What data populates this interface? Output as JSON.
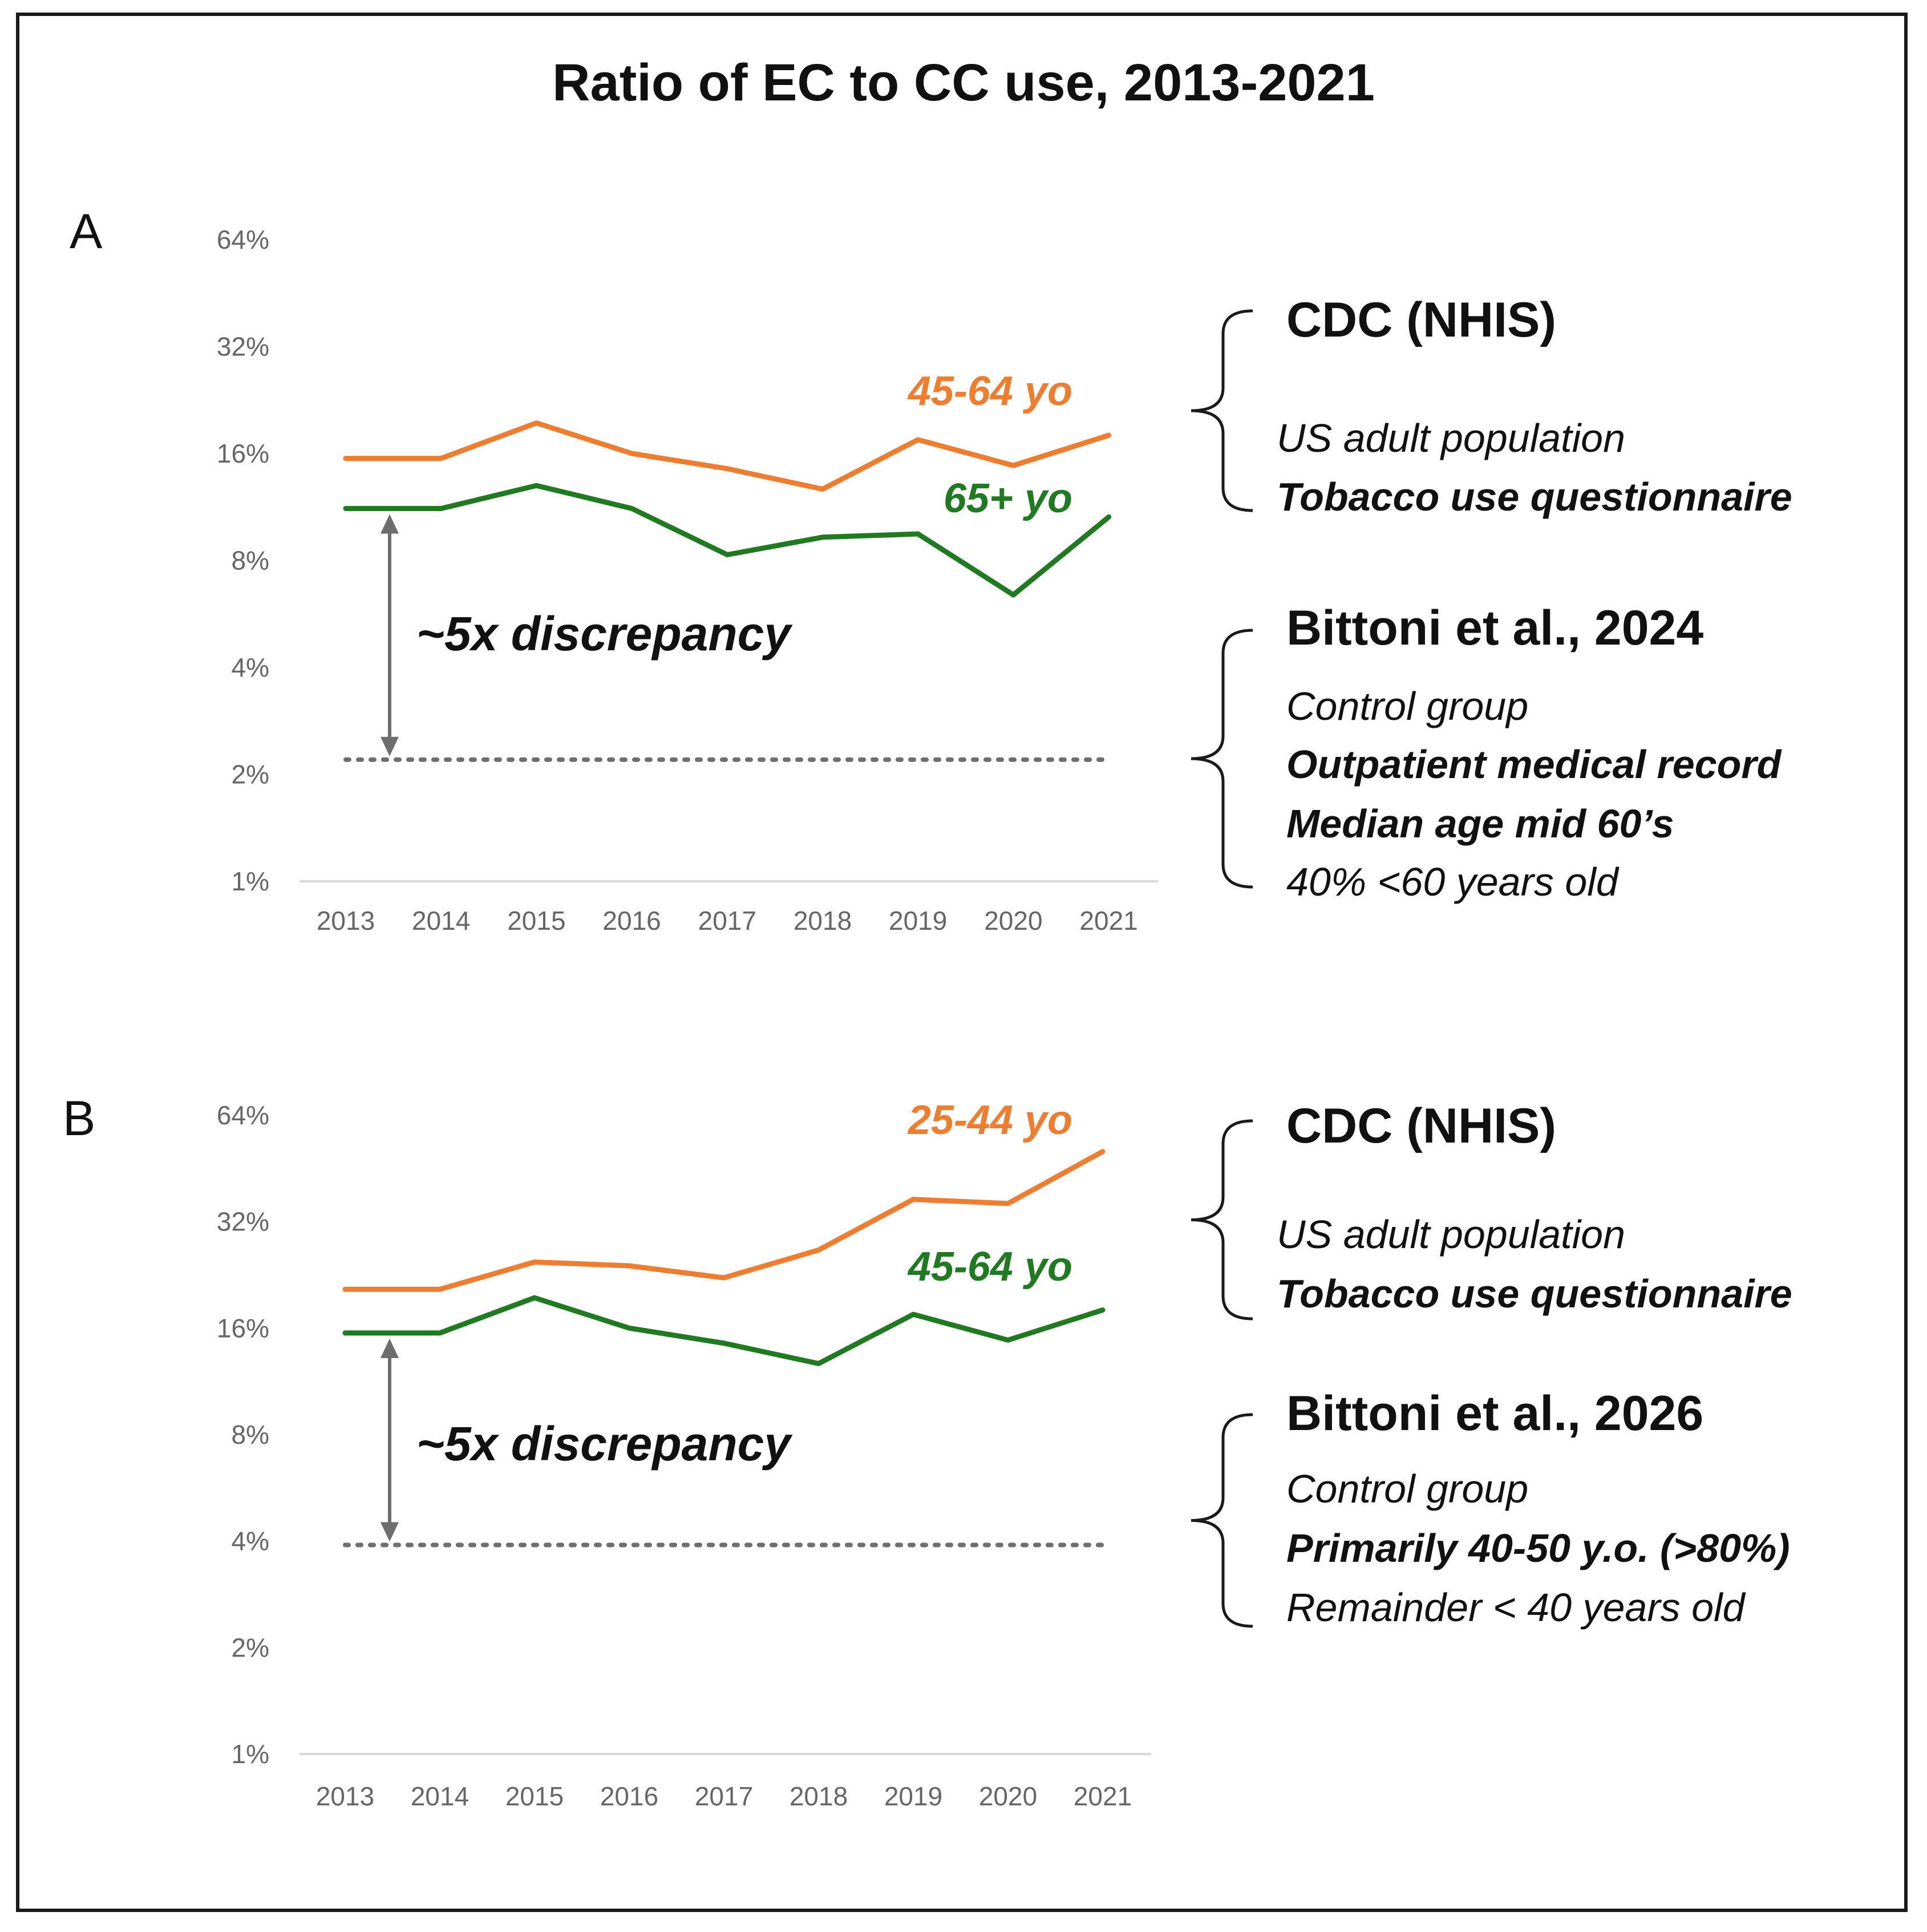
{
  "chart_data": {
    "title": "Ratio of EC to CC use, 2013-2021",
    "panels": [
      {
        "panel": "A",
        "type": "line",
        "x": [
          "2013",
          "2014",
          "2015",
          "2016",
          "2017",
          "2018",
          "2019",
          "2020",
          "2021"
        ],
        "y_scale": "log2",
        "y_ticks": [
          "64%",
          "32%",
          "16%",
          "8%",
          "4%",
          "2%",
          "1%"
        ],
        "ylim": [
          1,
          64
        ],
        "grid": false,
        "series": [
          {
            "name": "45-64 yo",
            "color": "#ED7D31",
            "values": [
              15.5,
              15.5,
              19.5,
              16,
              14.5,
              12.7,
              17.5,
              14.8,
              18
            ]
          },
          {
            "name": "65+ yo",
            "color": "#217A21",
            "values": [
              11.2,
              11.2,
              13.0,
              11.2,
              8.3,
              9.3,
              9.5,
              6.4,
              10.6
            ]
          }
        ],
        "reference_level": 2.2,
        "discrepancy_label": "~5x discrepancy",
        "annotations": [
          {
            "heading": "CDC (NHIS)",
            "lines": [
              {
                "text": "US adult population",
                "bold": false
              },
              {
                "text": "Tobacco use questionnaire",
                "bold": true
              }
            ]
          },
          {
            "heading": "Bittoni et al., 2024",
            "lines": [
              {
                "text": "Control group",
                "bold": false
              },
              {
                "text": "Outpatient medical record",
                "bold": true
              },
              {
                "text": "Median age mid 60’s",
                "bold": true
              },
              {
                "text": "40% <60 years old",
                "bold": false
              }
            ]
          }
        ]
      },
      {
        "panel": "B",
        "type": "line",
        "x": [
          "2013",
          "2014",
          "2015",
          "2016",
          "2017",
          "2018",
          "2019",
          "2020",
          "2021"
        ],
        "y_scale": "log2",
        "y_ticks": [
          "64%",
          "32%",
          "16%",
          "8%",
          "4%",
          "2%",
          "1%"
        ],
        "ylim": [
          1,
          64
        ],
        "grid": false,
        "series": [
          {
            "name": "25-44 yo",
            "color": "#ED7D31",
            "values": [
              20.6,
              20.6,
              24.6,
              24.0,
              22.2,
              26.6,
              37.0,
              36.0,
              50.5
            ]
          },
          {
            "name": "45-64 yo",
            "color": "#217A21",
            "values": [
              15.5,
              15.5,
              19.5,
              16,
              14.5,
              12.7,
              17.5,
              14.8,
              18
            ]
          }
        ],
        "reference_level": 3.9,
        "discrepancy_label": "~5x discrepancy",
        "annotations": [
          {
            "heading": "CDC (NHIS)",
            "lines": [
              {
                "text": "US adult population",
                "bold": false
              },
              {
                "text": "Tobacco use questionnaire",
                "bold": true
              }
            ]
          },
          {
            "heading": "Bittoni et al., 2026",
            "lines": [
              {
                "text": "Control group",
                "bold": false
              },
              {
                "text": "Primarily 40-50 y.o. (>80%)",
                "bold": true
              },
              {
                "text": "Remainder < 40 years old",
                "bold": false
              }
            ]
          }
        ]
      }
    ]
  }
}
